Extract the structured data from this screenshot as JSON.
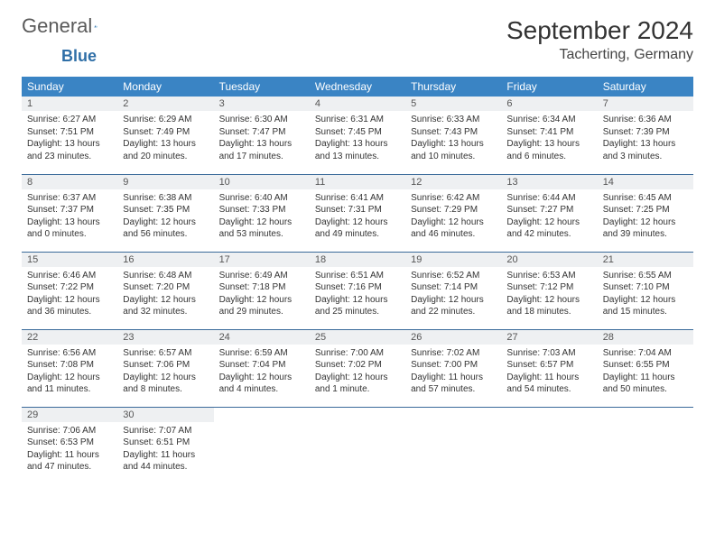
{
  "brand": {
    "part1": "General",
    "part2": "Blue"
  },
  "title": "September 2024",
  "location": "Tacherting, Germany",
  "colors": {
    "header_bg": "#3a84c4",
    "header_fg": "#ffffff",
    "daynum_bg": "#eef0f2",
    "row_border": "#3a6a9a",
    "logo_blue": "#2f6fa7",
    "logo_grey": "#5a5a5a"
  },
  "weekdays": [
    "Sunday",
    "Monday",
    "Tuesday",
    "Wednesday",
    "Thursday",
    "Friday",
    "Saturday"
  ],
  "weeks": [
    [
      {
        "n": "1",
        "sr": "Sunrise: 6:27 AM",
        "ss": "Sunset: 7:51 PM",
        "d1": "Daylight: 13 hours",
        "d2": "and 23 minutes."
      },
      {
        "n": "2",
        "sr": "Sunrise: 6:29 AM",
        "ss": "Sunset: 7:49 PM",
        "d1": "Daylight: 13 hours",
        "d2": "and 20 minutes."
      },
      {
        "n": "3",
        "sr": "Sunrise: 6:30 AM",
        "ss": "Sunset: 7:47 PM",
        "d1": "Daylight: 13 hours",
        "d2": "and 17 minutes."
      },
      {
        "n": "4",
        "sr": "Sunrise: 6:31 AM",
        "ss": "Sunset: 7:45 PM",
        "d1": "Daylight: 13 hours",
        "d2": "and 13 minutes."
      },
      {
        "n": "5",
        "sr": "Sunrise: 6:33 AM",
        "ss": "Sunset: 7:43 PM",
        "d1": "Daylight: 13 hours",
        "d2": "and 10 minutes."
      },
      {
        "n": "6",
        "sr": "Sunrise: 6:34 AM",
        "ss": "Sunset: 7:41 PM",
        "d1": "Daylight: 13 hours",
        "d2": "and 6 minutes."
      },
      {
        "n": "7",
        "sr": "Sunrise: 6:36 AM",
        "ss": "Sunset: 7:39 PM",
        "d1": "Daylight: 13 hours",
        "d2": "and 3 minutes."
      }
    ],
    [
      {
        "n": "8",
        "sr": "Sunrise: 6:37 AM",
        "ss": "Sunset: 7:37 PM",
        "d1": "Daylight: 13 hours",
        "d2": "and 0 minutes."
      },
      {
        "n": "9",
        "sr": "Sunrise: 6:38 AM",
        "ss": "Sunset: 7:35 PM",
        "d1": "Daylight: 12 hours",
        "d2": "and 56 minutes."
      },
      {
        "n": "10",
        "sr": "Sunrise: 6:40 AM",
        "ss": "Sunset: 7:33 PM",
        "d1": "Daylight: 12 hours",
        "d2": "and 53 minutes."
      },
      {
        "n": "11",
        "sr": "Sunrise: 6:41 AM",
        "ss": "Sunset: 7:31 PM",
        "d1": "Daylight: 12 hours",
        "d2": "and 49 minutes."
      },
      {
        "n": "12",
        "sr": "Sunrise: 6:42 AM",
        "ss": "Sunset: 7:29 PM",
        "d1": "Daylight: 12 hours",
        "d2": "and 46 minutes."
      },
      {
        "n": "13",
        "sr": "Sunrise: 6:44 AM",
        "ss": "Sunset: 7:27 PM",
        "d1": "Daylight: 12 hours",
        "d2": "and 42 minutes."
      },
      {
        "n": "14",
        "sr": "Sunrise: 6:45 AM",
        "ss": "Sunset: 7:25 PM",
        "d1": "Daylight: 12 hours",
        "d2": "and 39 minutes."
      }
    ],
    [
      {
        "n": "15",
        "sr": "Sunrise: 6:46 AM",
        "ss": "Sunset: 7:22 PM",
        "d1": "Daylight: 12 hours",
        "d2": "and 36 minutes."
      },
      {
        "n": "16",
        "sr": "Sunrise: 6:48 AM",
        "ss": "Sunset: 7:20 PM",
        "d1": "Daylight: 12 hours",
        "d2": "and 32 minutes."
      },
      {
        "n": "17",
        "sr": "Sunrise: 6:49 AM",
        "ss": "Sunset: 7:18 PM",
        "d1": "Daylight: 12 hours",
        "d2": "and 29 minutes."
      },
      {
        "n": "18",
        "sr": "Sunrise: 6:51 AM",
        "ss": "Sunset: 7:16 PM",
        "d1": "Daylight: 12 hours",
        "d2": "and 25 minutes."
      },
      {
        "n": "19",
        "sr": "Sunrise: 6:52 AM",
        "ss": "Sunset: 7:14 PM",
        "d1": "Daylight: 12 hours",
        "d2": "and 22 minutes."
      },
      {
        "n": "20",
        "sr": "Sunrise: 6:53 AM",
        "ss": "Sunset: 7:12 PM",
        "d1": "Daylight: 12 hours",
        "d2": "and 18 minutes."
      },
      {
        "n": "21",
        "sr": "Sunrise: 6:55 AM",
        "ss": "Sunset: 7:10 PM",
        "d1": "Daylight: 12 hours",
        "d2": "and 15 minutes."
      }
    ],
    [
      {
        "n": "22",
        "sr": "Sunrise: 6:56 AM",
        "ss": "Sunset: 7:08 PM",
        "d1": "Daylight: 12 hours",
        "d2": "and 11 minutes."
      },
      {
        "n": "23",
        "sr": "Sunrise: 6:57 AM",
        "ss": "Sunset: 7:06 PM",
        "d1": "Daylight: 12 hours",
        "d2": "and 8 minutes."
      },
      {
        "n": "24",
        "sr": "Sunrise: 6:59 AM",
        "ss": "Sunset: 7:04 PM",
        "d1": "Daylight: 12 hours",
        "d2": "and 4 minutes."
      },
      {
        "n": "25",
        "sr": "Sunrise: 7:00 AM",
        "ss": "Sunset: 7:02 PM",
        "d1": "Daylight: 12 hours",
        "d2": "and 1 minute."
      },
      {
        "n": "26",
        "sr": "Sunrise: 7:02 AM",
        "ss": "Sunset: 7:00 PM",
        "d1": "Daylight: 11 hours",
        "d2": "and 57 minutes."
      },
      {
        "n": "27",
        "sr": "Sunrise: 7:03 AM",
        "ss": "Sunset: 6:57 PM",
        "d1": "Daylight: 11 hours",
        "d2": "and 54 minutes."
      },
      {
        "n": "28",
        "sr": "Sunrise: 7:04 AM",
        "ss": "Sunset: 6:55 PM",
        "d1": "Daylight: 11 hours",
        "d2": "and 50 minutes."
      }
    ],
    [
      {
        "n": "29",
        "sr": "Sunrise: 7:06 AM",
        "ss": "Sunset: 6:53 PM",
        "d1": "Daylight: 11 hours",
        "d2": "and 47 minutes."
      },
      {
        "n": "30",
        "sr": "Sunrise: 7:07 AM",
        "ss": "Sunset: 6:51 PM",
        "d1": "Daylight: 11 hours",
        "d2": "and 44 minutes."
      },
      null,
      null,
      null,
      null,
      null
    ]
  ]
}
